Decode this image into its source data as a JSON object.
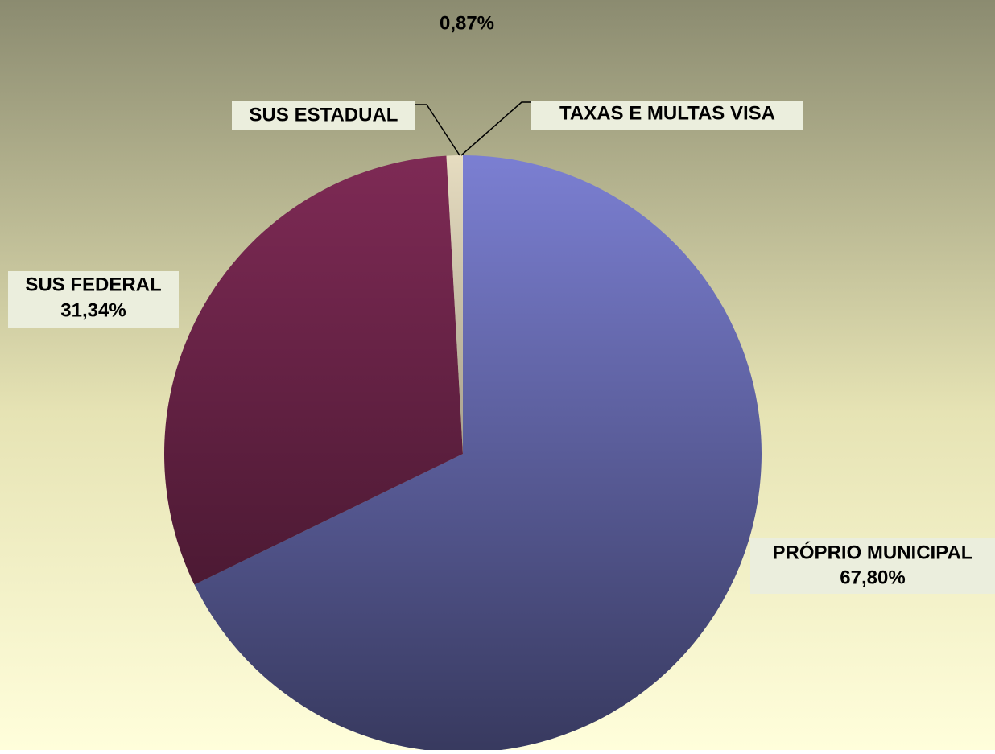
{
  "chart_data": {
    "type": "pie",
    "categories": [
      "PRÓPRIO MUNICIPAL",
      "SUS FEDERAL",
      "SUS ESTADUAL",
      "TAXAS E MULTAS VISA"
    ],
    "values": [
      67.8,
      31.34,
      0.87,
      0.01
    ],
    "value_labels": [
      "67,80%",
      "31,34%",
      "0,87%",
      null
    ],
    "colors": [
      "#7b7fd2",
      "#7e2a55",
      "#e6dcc0",
      "#ffffff"
    ]
  }
}
